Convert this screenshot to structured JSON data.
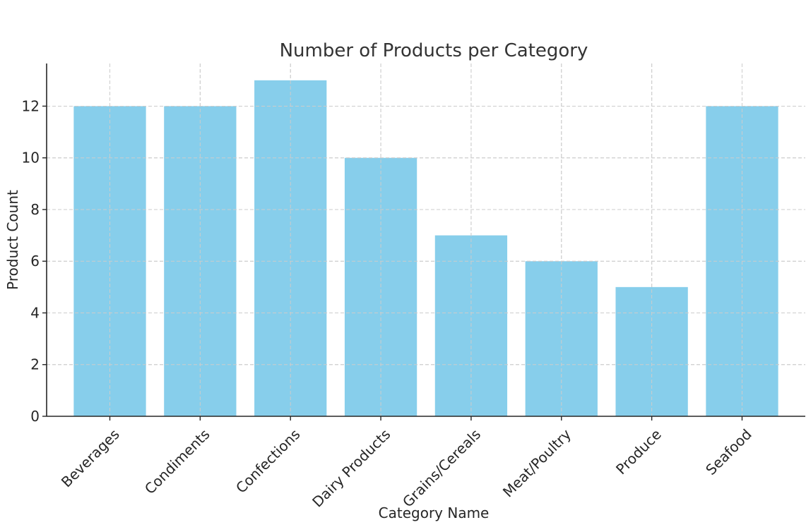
{
  "chart_data": {
    "type": "bar",
    "title": "Number of Products per Category",
    "xlabel": "Category Name",
    "ylabel": "Product Count",
    "categories": [
      "Beverages",
      "Condiments",
      "Confections",
      "Dairy Products",
      "Grains/Cereals",
      "Meat/Poultry",
      "Produce",
      "Seafood"
    ],
    "values": [
      12,
      12,
      13,
      10,
      7,
      6,
      5,
      12
    ],
    "ylim": [
      0,
      13.65
    ],
    "yticks": [
      0,
      2,
      4,
      6,
      8,
      10,
      12
    ],
    "grid": true,
    "bar_color": "#87CEEB"
  }
}
